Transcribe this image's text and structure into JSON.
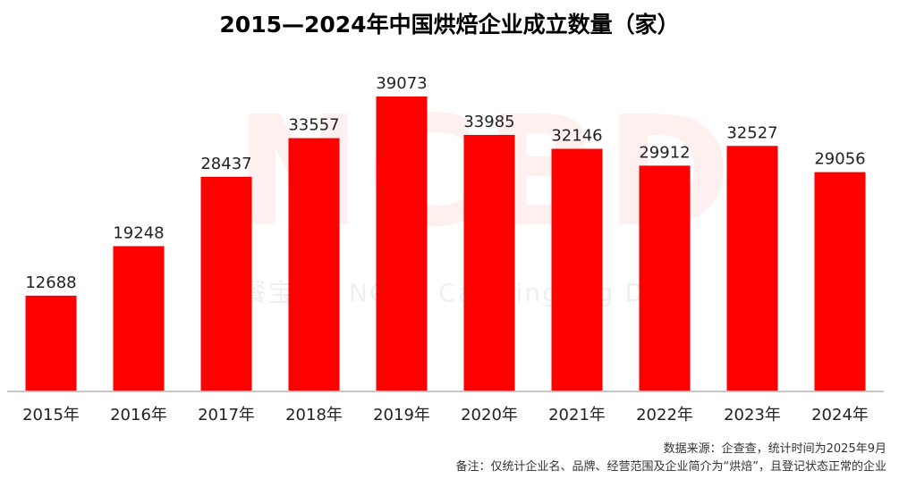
{
  "chart_data": {
    "type": "bar",
    "title": "2015—2024年中国烘焙企业成立数量（家）",
    "xlabel": "",
    "ylabel": "",
    "categories": [
      "2015年",
      "2016年",
      "2017年",
      "2018年",
      "2019年",
      "2020年",
      "2021年",
      "2022年",
      "2023年",
      "2024年"
    ],
    "values": [
      12688,
      19248,
      28437,
      33557,
      39073,
      33985,
      32146,
      29912,
      32527,
      29056
    ],
    "ylim": [
      0,
      39073
    ],
    "grid": false,
    "legend": "none",
    "bar_color": "#ff0000",
    "axis_color": "#c8c8c8"
  },
  "watermark": {
    "logo": "NCBD",
    "text": "餐宝　　NCBD Catering Big Data"
  },
  "footer": {
    "source": "数据来源：企查查，统计时间为2025年9月",
    "note": "备注：仅统计企业名、品牌、经营范围及企业简介为“烘焙”，且登记状态正常的企业"
  }
}
